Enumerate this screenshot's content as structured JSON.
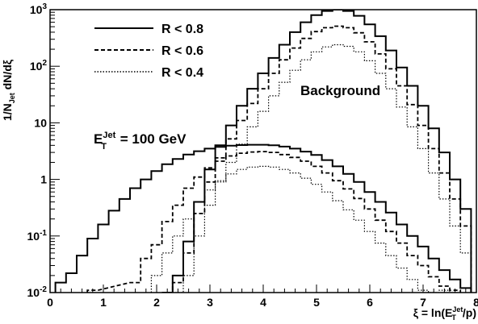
{
  "chart_data": {
    "type": "line",
    "title": "",
    "xlabel": "ξ = ln(E_T^Jet/p)",
    "xlabel_parts": {
      "pre": "ξ = ln(E",
      "sub": "T",
      "sup": "Jet",
      "post": "/p)"
    },
    "ylabel": "1/N_Jet dN/dξ",
    "ylabel_parts": {
      "pre": "1/N",
      "sub": "Jet",
      "post": " dN/dξ"
    },
    "xlim": [
      0,
      8
    ],
    "ylim": [
      0.01,
      1000
    ],
    "yscale": "log",
    "x_ticks": [
      "0",
      "1",
      "2",
      "3",
      "4",
      "5",
      "6",
      "7",
      "8"
    ],
    "y_ticks": [
      {
        "value": 0.01,
        "base": "10",
        "exp": "-2"
      },
      {
        "value": 0.1,
        "base": "10",
        "exp": "-1"
      },
      {
        "value": 1,
        "label": "1"
      },
      {
        "value": 10,
        "label": "10"
      },
      {
        "value": 100,
        "base": "10",
        "exp": "2"
      },
      {
        "value": 1000,
        "base": "10",
        "exp": "3"
      }
    ],
    "grid": false,
    "legend_position": "top-left",
    "annotations": {
      "background": "Background",
      "energy": {
        "pre": "E",
        "sub": "T",
        "sup": "Jet",
        "post": " = 100 GeV"
      }
    },
    "series": [
      {
        "name": "R < 0.8",
        "style": "solid",
        "group": "jet",
        "x": [
          0.2,
          0.4,
          0.6,
          0.8,
          1.0,
          1.2,
          1.4,
          1.6,
          1.8,
          2.0,
          2.2,
          2.4,
          2.6,
          2.8,
          3.0,
          3.2,
          3.4,
          3.6,
          3.8,
          4.0,
          4.2,
          4.4,
          4.6,
          4.8,
          5.0,
          5.2,
          5.4,
          5.6,
          5.8,
          6.0,
          6.2,
          6.4,
          6.6,
          6.8,
          7.0,
          7.2,
          7.4,
          7.6,
          7.8
        ],
        "y": [
          0.015,
          0.022,
          0.045,
          0.09,
          0.16,
          0.28,
          0.45,
          0.7,
          1.0,
          1.4,
          1.85,
          2.3,
          2.75,
          3.15,
          3.5,
          3.75,
          3.95,
          4.05,
          4.1,
          4.1,
          4.0,
          3.8,
          3.5,
          3.1,
          2.7,
          2.2,
          1.7,
          1.25,
          0.9,
          0.6,
          0.4,
          0.26,
          0.16,
          0.1,
          0.065,
          0.04,
          0.025,
          0.017,
          0.012
        ]
      },
      {
        "name": "R < 0.6",
        "style": "dashed",
        "group": "jet",
        "x": [
          0.8,
          1.6,
          1.8,
          2.0,
          2.2,
          2.4,
          2.6,
          2.8,
          3.0,
          3.2,
          3.4,
          3.6,
          3.8,
          4.0,
          4.2,
          4.4,
          4.6,
          4.8,
          5.0,
          5.2,
          5.4,
          5.6,
          5.8,
          6.0,
          6.2,
          6.4,
          6.6,
          6.8,
          7.0,
          7.2,
          7.4,
          7.6
        ],
        "y": [
          0.011,
          0.015,
          0.04,
          0.07,
          0.18,
          0.35,
          0.7,
          1.1,
          1.6,
          2.1,
          2.6,
          2.9,
          3.05,
          3.1,
          3.0,
          2.75,
          2.45,
          2.1,
          1.7,
          1.3,
          0.95,
          0.68,
          0.46,
          0.3,
          0.19,
          0.12,
          0.075,
          0.045,
          0.03,
          0.019,
          0.013,
          0.011
        ]
      },
      {
        "name": "R < 0.4",
        "style": "dotted",
        "group": "jet",
        "x": [
          2.0,
          2.2,
          2.4,
          2.6,
          2.8,
          3.0,
          3.2,
          3.4,
          3.6,
          3.8,
          4.0,
          4.2,
          4.4,
          4.6,
          4.8,
          5.0,
          5.2,
          5.4,
          5.6,
          5.8,
          6.0,
          6.2,
          6.4,
          6.6,
          6.8,
          7.0,
          7.2,
          7.4
        ],
        "y": [
          0.02,
          0.05,
          0.1,
          0.2,
          0.4,
          0.65,
          0.95,
          1.25,
          1.5,
          1.65,
          1.7,
          1.65,
          1.5,
          1.3,
          1.05,
          0.82,
          0.6,
          0.42,
          0.29,
          0.19,
          0.12,
          0.075,
          0.045,
          0.027,
          0.017,
          0.011,
          0.01,
          0.011
        ]
      },
      {
        "name": "R < 0.8",
        "style": "solid",
        "group": "background",
        "x": [
          2.2,
          2.4,
          2.6,
          2.8,
          3.0,
          3.2,
          3.4,
          3.6,
          3.8,
          4.0,
          4.2,
          4.4,
          4.6,
          4.8,
          5.0,
          5.2,
          5.4,
          5.6,
          5.8,
          6.0,
          6.2,
          6.4,
          6.6,
          6.8,
          7.0,
          7.2,
          7.4,
          7.6,
          7.8
        ],
        "y": [
          0.01,
          0.02,
          0.08,
          0.4,
          1.5,
          4,
          9,
          20,
          40,
          75,
          140,
          240,
          400,
          600,
          800,
          950,
          1000,
          950,
          780,
          550,
          340,
          190,
          95,
          45,
          20,
          8,
          3,
          1,
          0.3
        ]
      },
      {
        "name": "R < 0.6",
        "style": "dashed",
        "group": "background",
        "x": [
          2.2,
          2.4,
          2.6,
          2.8,
          3.0,
          3.2,
          3.4,
          3.6,
          3.8,
          4.0,
          4.2,
          4.4,
          4.6,
          4.8,
          5.0,
          5.2,
          5.4,
          5.6,
          5.8,
          6.0,
          6.2,
          6.4,
          6.6,
          6.8,
          7.0,
          7.2,
          7.4,
          7.6,
          7.8
        ],
        "y": [
          0.01,
          0.015,
          0.05,
          0.25,
          0.9,
          2.4,
          5.2,
          11,
          22,
          40,
          75,
          130,
          210,
          310,
          410,
          480,
          510,
          480,
          390,
          270,
          165,
          90,
          45,
          21,
          9,
          3.5,
          1.3,
          0.45,
          0.15
        ]
      },
      {
        "name": "R < 0.4",
        "style": "dotted",
        "group": "background",
        "x": [
          2.4,
          2.6,
          2.8,
          3.0,
          3.2,
          3.4,
          3.6,
          3.8,
          4.0,
          4.2,
          4.4,
          4.6,
          4.8,
          5.0,
          5.2,
          5.4,
          5.6,
          5.8,
          6.0,
          6.2,
          6.4,
          6.6,
          6.8,
          7.0,
          7.2,
          7.4,
          7.6,
          7.8
        ],
        "y": [
          0.01,
          0.02,
          0.1,
          0.35,
          0.9,
          2.0,
          4.2,
          8.5,
          16,
          30,
          52,
          85,
          130,
          180,
          220,
          240,
          225,
          180,
          125,
          75,
          40,
          19,
          8.5,
          3.5,
          1.3,
          0.45,
          0.15,
          0.05
        ]
      }
    ]
  }
}
